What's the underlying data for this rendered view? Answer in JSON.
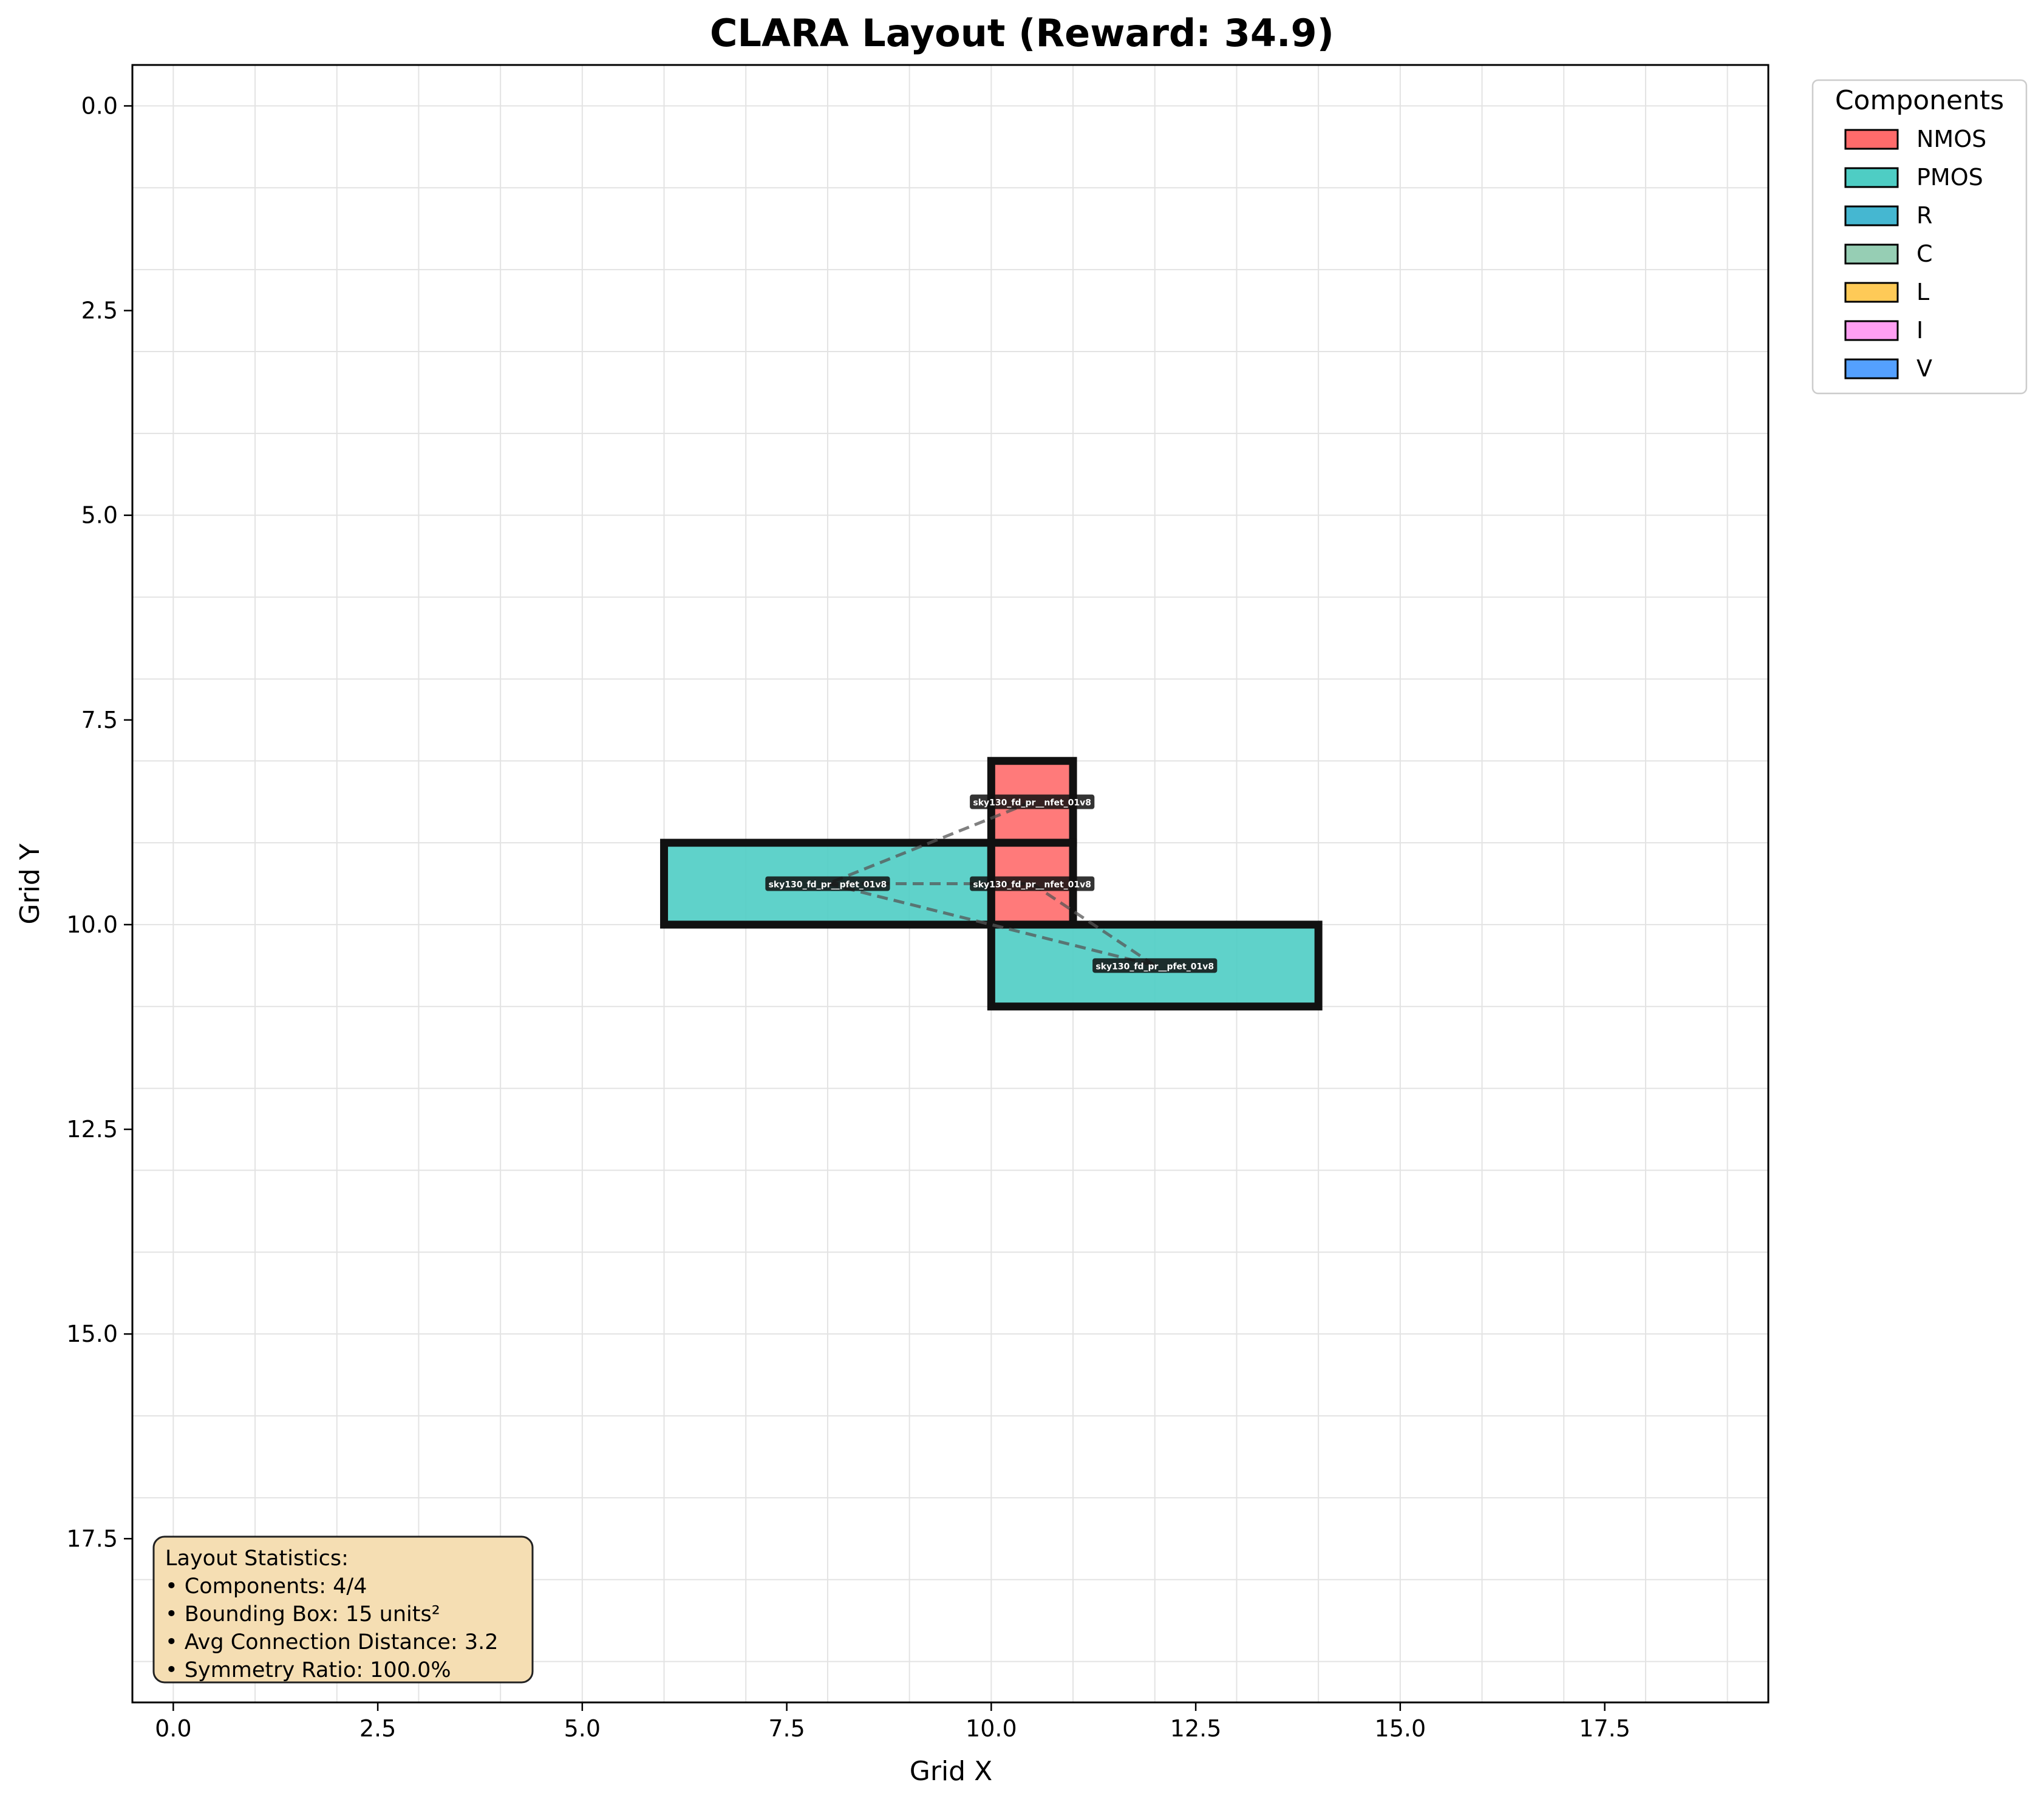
{
  "chart_data": {
    "type": "layout",
    "title": "CLARA Layout (Reward: 34.9)",
    "xlabel": "Grid X",
    "ylabel": "Grid Y",
    "xlim": [
      -0.5,
      19.5
    ],
    "ylim": [
      19.5,
      -0.5
    ],
    "y_inverted": true,
    "grid": true,
    "xticks": [
      0.0,
      2.5,
      5.0,
      7.5,
      10.0,
      12.5,
      15.0,
      17.5
    ],
    "xtick_labels": [
      "0.0",
      "2.5",
      "5.0",
      "7.5",
      "10.0",
      "12.5",
      "15.0",
      "17.5"
    ],
    "yticks": [
      0.0,
      2.5,
      5.0,
      7.5,
      10.0,
      12.5,
      15.0,
      17.5
    ],
    "ytick_labels": [
      "0.0",
      "2.5",
      "5.0",
      "7.5",
      "10.0",
      "12.5",
      "15.0",
      "17.5"
    ],
    "legend": {
      "title": "Components",
      "placement": "upper-right-outside",
      "entries": [
        {
          "label": "NMOS",
          "color": "#ff6b6b"
        },
        {
          "label": "PMOS",
          "color": "#4ecdc4"
        },
        {
          "label": "R",
          "color": "#45b7d1"
        },
        {
          "label": "C",
          "color": "#96ceb4"
        },
        {
          "label": "L",
          "color": "#feca57"
        },
        {
          "label": "I",
          "color": "#ff9ff3"
        },
        {
          "label": "V",
          "color": "#54a0ff"
        }
      ]
    },
    "components": [
      {
        "type": "NMOS",
        "label": "sky130_fd_pr__nfet_01v8",
        "x": 10,
        "y": 8,
        "w": 1,
        "h": 1
      },
      {
        "type": "PMOS",
        "label": "sky130_fd_pr__pfet_01v8",
        "x": 6,
        "y": 9,
        "w": 4,
        "h": 1
      },
      {
        "type": "NMOS",
        "label": "sky130_fd_pr__nfet_01v8",
        "x": 10,
        "y": 9,
        "w": 1,
        "h": 1
      },
      {
        "type": "PMOS",
        "label": "sky130_fd_pr__pfet_01v8",
        "x": 10,
        "y": 10,
        "w": 4,
        "h": 1
      }
    ],
    "connections": [
      [
        0,
        1
      ],
      [
        1,
        2
      ],
      [
        1,
        3
      ],
      [
        2,
        3
      ]
    ],
    "stats": {
      "lines": [
        "Layout Statistics:",
        "• Components: 4/4",
        "• Bounding Box: 15 units²",
        "• Avg Connection Distance: 3.2",
        "• Symmetry Ratio: 100.0%"
      ]
    }
  }
}
